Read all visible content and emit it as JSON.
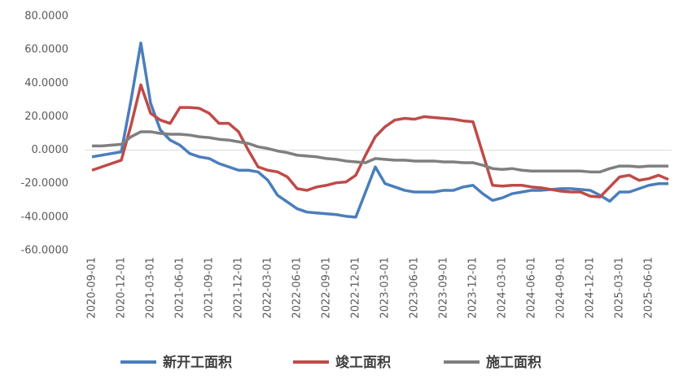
{
  "chart_data": {
    "type": "line",
    "categories": [
      "2020-09-01",
      null,
      null,
      "2020-12-01",
      null,
      null,
      "2021-03-01",
      null,
      null,
      "2021-06-01",
      null,
      null,
      "2021-09-01",
      null,
      null,
      "2021-12-01",
      null,
      null,
      "2022-03-01",
      null,
      null,
      "2022-06-01",
      null,
      null,
      "2022-09-01",
      null,
      null,
      "2022-12-01",
      null,
      null,
      "2023-03-01",
      null,
      null,
      "2023-06-01",
      null,
      null,
      "2023-09-01",
      null,
      null,
      "2023-12-01",
      null,
      null,
      "2024-03-01",
      null,
      null,
      "2024-06-01",
      null,
      null,
      "2024-09-01",
      null,
      null,
      "2024-12-01",
      null,
      null,
      "2025-03-01",
      null,
      null,
      "2025-06-01",
      null,
      null
    ],
    "series": [
      {
        "name": "新开工面积",
        "color": "#4a7ebb",
        "values": [
          -4,
          -3,
          -2,
          -1,
          30,
          64,
          28,
          12,
          6,
          3,
          -2,
          -4,
          -5,
          -8,
          -10,
          -12,
          -12,
          -13,
          -18,
          -27,
          -31,
          -35,
          -37,
          -37.5,
          -38,
          -38.5,
          -39.5,
          -40,
          -25,
          -10,
          -20,
          -22,
          -24,
          -25,
          -25,
          -25,
          -24,
          -24,
          -22,
          -21,
          -26,
          -30,
          -28.5,
          -26,
          -25,
          -24,
          -24,
          -23.5,
          -23,
          -23,
          -23.5,
          -24,
          -27,
          -30.5,
          -25,
          -25,
          -23,
          -21,
          -20,
          -20
        ]
      },
      {
        "name": "竣工面积",
        "color": "#be4b48",
        "values": [
          -12,
          -10,
          -8,
          -6,
          15,
          39,
          22,
          18,
          16,
          25.5,
          25.5,
          25,
          22,
          16,
          16,
          11,
          0,
          -10,
          -12,
          -13,
          -16,
          -23,
          -24,
          -22,
          -21,
          -19.5,
          -19,
          -15,
          -3,
          8,
          14,
          18,
          19,
          18.5,
          20,
          19.5,
          19,
          18.5,
          17.5,
          17,
          -2,
          -21,
          -21.5,
          -21,
          -21,
          -22,
          -22.5,
          -23.5,
          -24.5,
          -25,
          -25,
          -27.5,
          -28,
          -22,
          -16,
          -15,
          -18,
          -17,
          -15,
          -17.5
        ]
      },
      {
        "name": "施工面积",
        "color": "#7f7f7f",
        "values": [
          2.5,
          2.5,
          3,
          3.5,
          8,
          11,
          11,
          10,
          9.5,
          9.5,
          9,
          8,
          7.5,
          6.5,
          6,
          5,
          4,
          2,
          1,
          -0.5,
          -1.5,
          -3,
          -3.5,
          -4,
          -5,
          -5.5,
          -6.5,
          -7,
          -7.5,
          -5,
          -5.5,
          -6,
          -6,
          -6.5,
          -6.5,
          -6.5,
          -7,
          -7,
          -7.5,
          -7.5,
          -9,
          -11,
          -11.5,
          -11,
          -12,
          -12.5,
          -12.5,
          -12.5,
          -12.5,
          -12.5,
          -12.5,
          -13,
          -13,
          -11,
          -9.5,
          -9.5,
          -10,
          -9.5,
          -9.5,
          -9.5
        ]
      }
    ],
    "ylim": [
      -60,
      80
    ],
    "yticks": [
      {
        "value": -60,
        "label": "-60.0000"
      },
      {
        "value": -40,
        "label": "-40.0000"
      },
      {
        "value": -20,
        "label": "-20.0000"
      },
      {
        "value": 0,
        "label": "0.0000"
      },
      {
        "value": 20,
        "label": "20.0000"
      },
      {
        "value": 40,
        "label": "40.0000"
      },
      {
        "value": 60,
        "label": "60.0000"
      },
      {
        "value": 80,
        "label": "80.0000"
      }
    ],
    "grid": false,
    "legend": "bottom"
  }
}
